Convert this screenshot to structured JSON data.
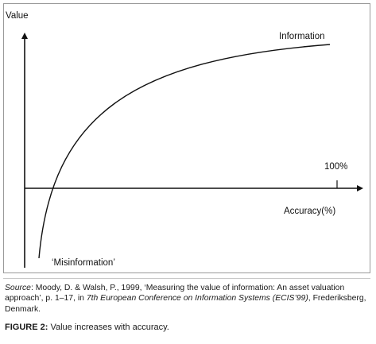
{
  "diagram": {
    "y_axis_label": "Value",
    "x_axis_label": "Accuracy(%)",
    "curve_label": "Information",
    "hundred_percent_label": "100%",
    "misinformation_label": "‘Misinformation’"
  },
  "caption": {
    "source_label": "Source",
    "source_text_1": ": Moody, D. & Walsh, P., 1999, ‘Measuring the value of information: An asset valuation approach’, p. 1–17, in ",
    "source_conference": "7th European Conference on Information Systems (ECIS’99)",
    "source_text_2": ", Frederiksberg, Denmark.",
    "figure_label": "FIGURE 2:",
    "figure_text": " Value increases with accuracy."
  },
  "colors": {
    "line": "#111111",
    "frame": "#9a9a9a"
  }
}
